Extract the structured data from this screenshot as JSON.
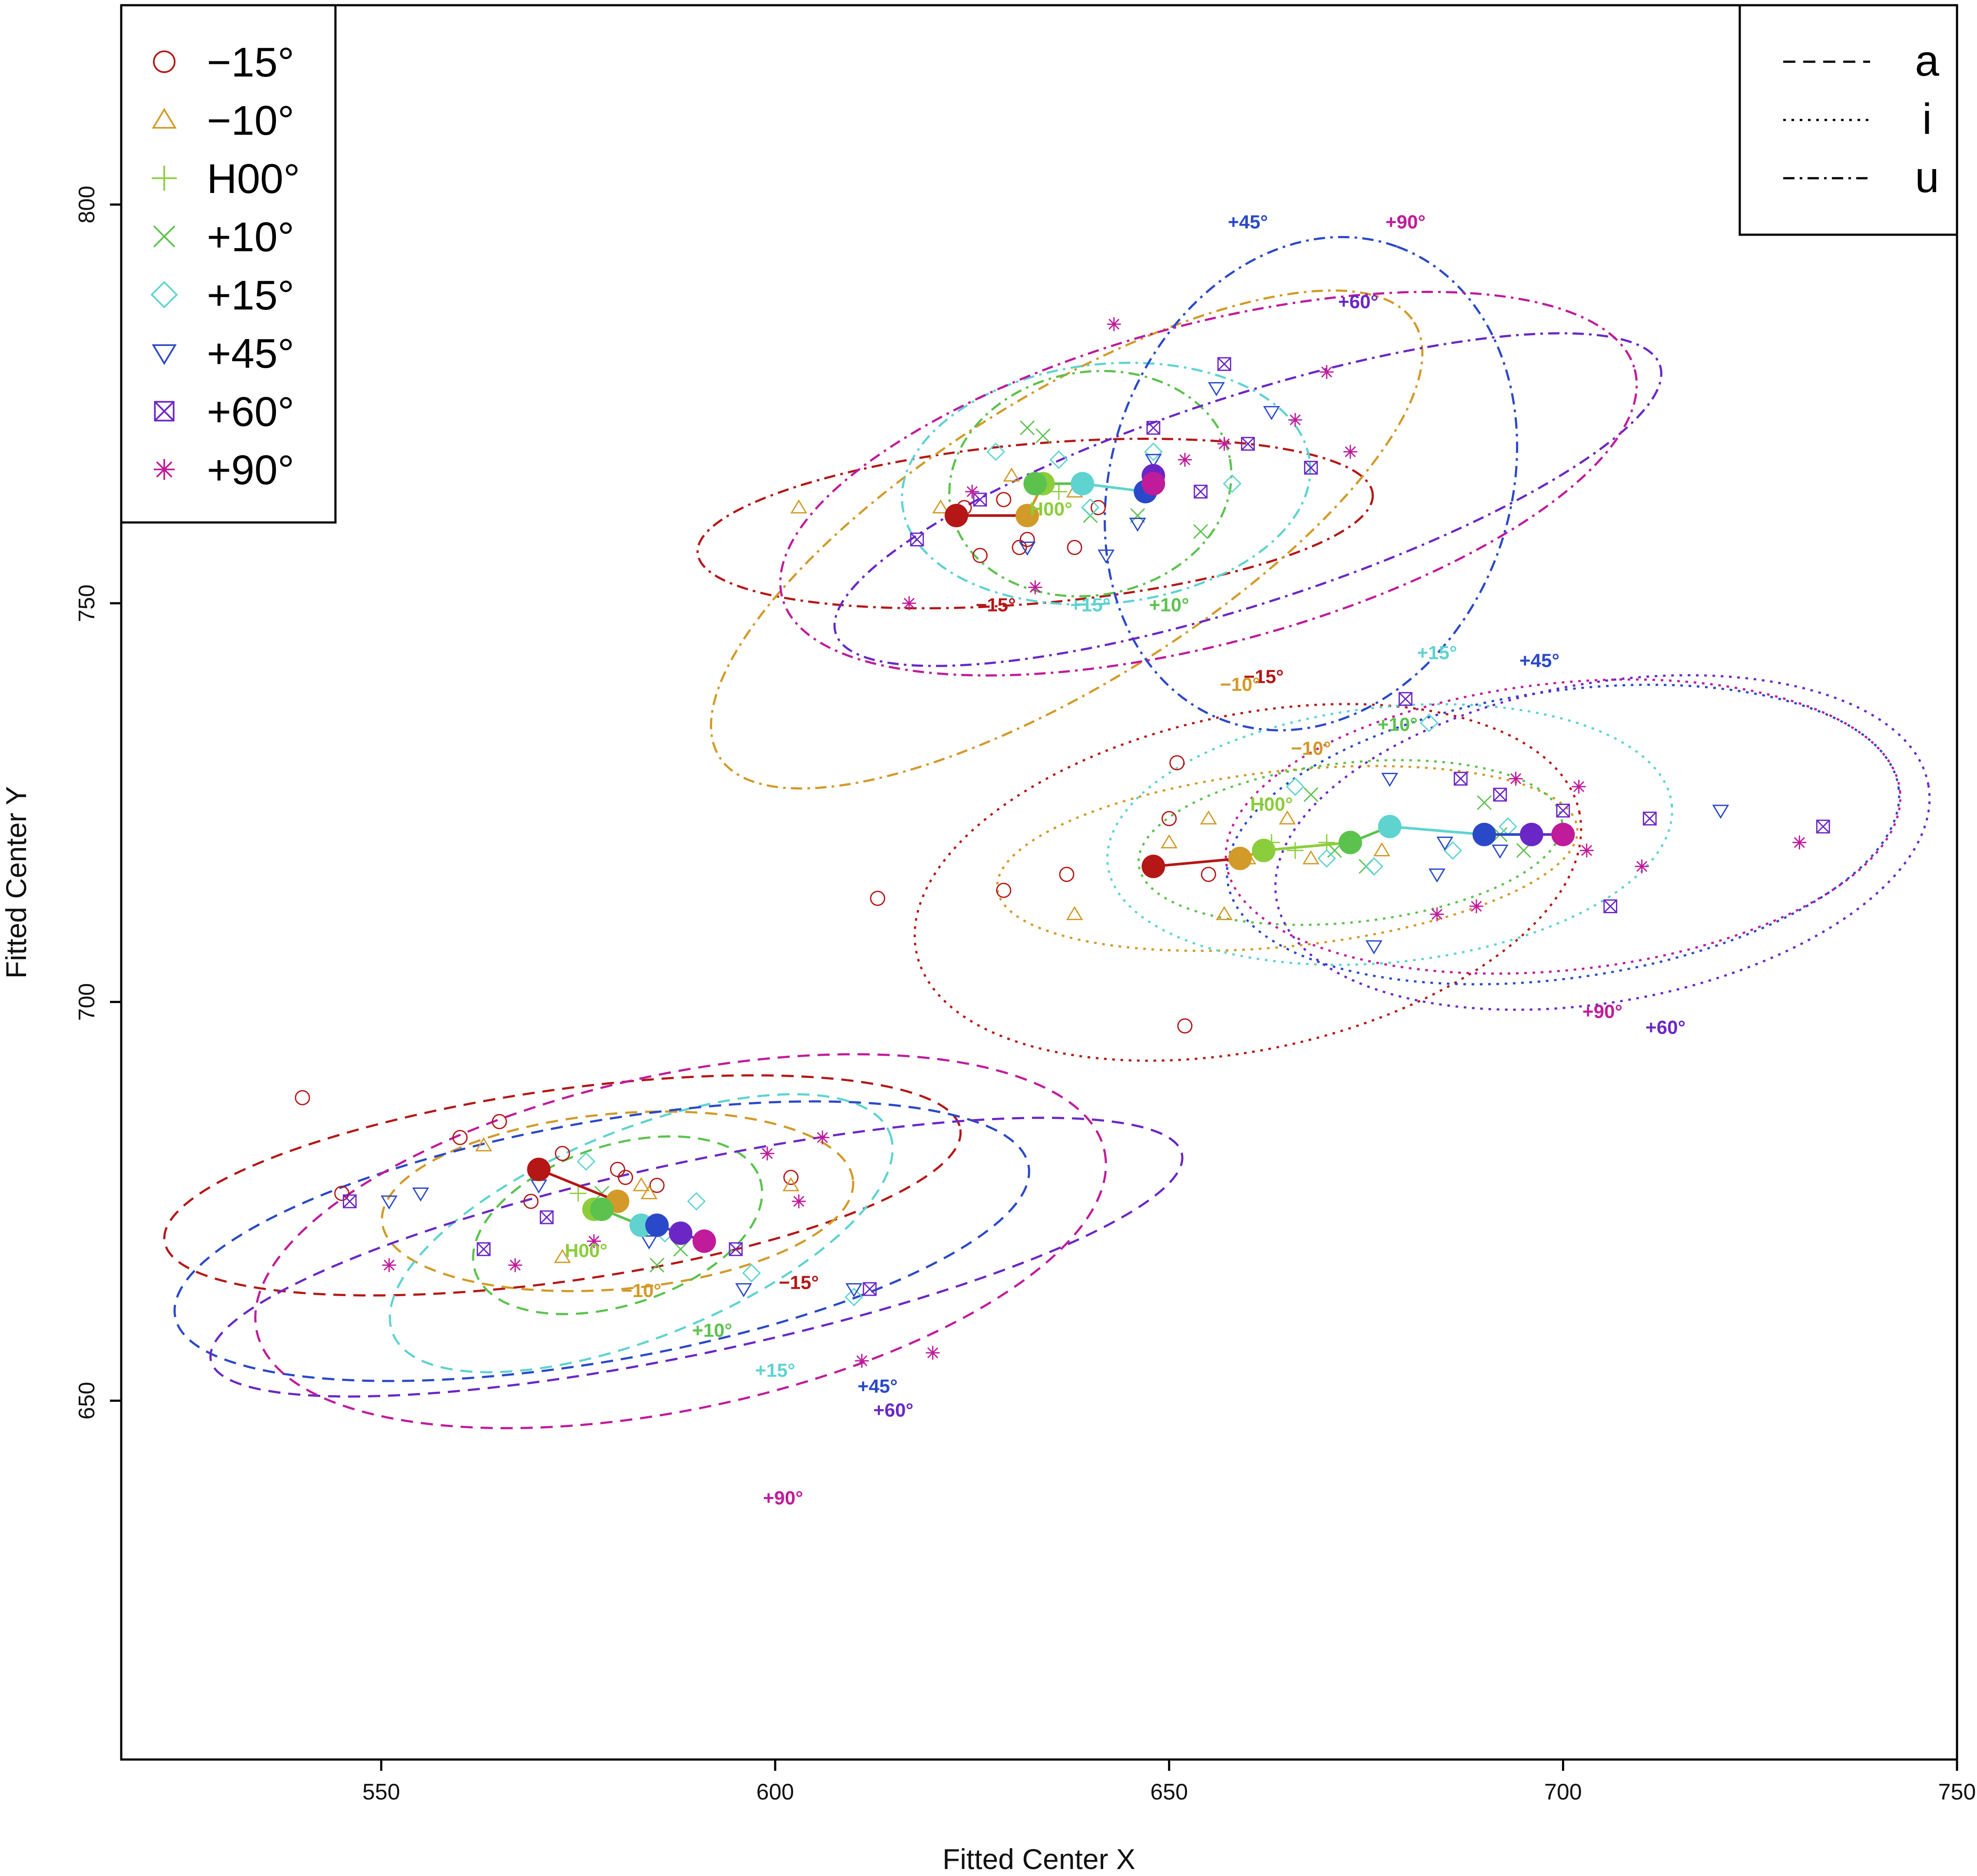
{
  "chart_data": {
    "type": "scatter",
    "title": "",
    "xlabel": "Fitted Center X",
    "ylabel": "Fitted Center Y",
    "xlim": [
      517,
      750
    ],
    "ylim": [
      605,
      825
    ],
    "xticks": [
      "550",
      "600",
      "650",
      "700",
      "750"
    ],
    "yticks": [
      "650",
      "700",
      "750",
      "800"
    ],
    "angle_legend": [
      {
        "label": "−15°",
        "marker": "circle",
        "color": "#b51616"
      },
      {
        "label": "−10°",
        "marker": "triangle",
        "color": "#d29a28"
      },
      {
        "label": "H00°",
        "marker": "plus",
        "color": "#8ccd3c"
      },
      {
        "label": "+10°",
        "marker": "cross",
        "color": "#5cc24e"
      },
      {
        "label": "+15°",
        "marker": "diamond",
        "color": "#5fd3d0"
      },
      {
        "label": "+45°",
        "marker": "triangle-down",
        "color": "#2a49c8"
      },
      {
        "label": "+60°",
        "marker": "boxed-x",
        "color": "#6a27c6"
      },
      {
        "label": "+90°",
        "marker": "asterisk",
        "color": "#c01b9b"
      }
    ],
    "vowel_legend": [
      {
        "label": "a",
        "dash": "dashed"
      },
      {
        "label": "i",
        "dash": "dotted"
      },
      {
        "label": "u",
        "dash": "dotdash"
      }
    ],
    "series": [
      {
        "name": "a",
        "dash": "dashed",
        "centers": [
          {
            "angle": "−15°",
            "x": 570,
            "y": 679
          },
          {
            "angle": "−10°",
            "x": 580,
            "y": 675
          },
          {
            "angle": "H00°",
            "x": 577,
            "y": 674
          },
          {
            "angle": "+10°",
            "x": 578,
            "y": 674
          },
          {
            "angle": "+15°",
            "x": 583,
            "y": 672
          },
          {
            "angle": "+45°",
            "x": 585,
            "y": 672
          },
          {
            "angle": "+60°",
            "x": 588,
            "y": 671
          },
          {
            "angle": "+90°",
            "x": 591,
            "y": 670
          }
        ],
        "ellipses": [
          {
            "angle": "−15°",
            "cx": 573,
            "cy": 677,
            "rx": 51,
            "ry": 12,
            "rot": -8
          },
          {
            "angle": "−10°",
            "cx": 580,
            "cy": 675,
            "rx": 30,
            "ry": 11,
            "rot": -5
          },
          {
            "angle": "+10°",
            "cx": 580,
            "cy": 672,
            "rx": 19,
            "ry": 10,
            "rot": -18
          },
          {
            "angle": "+15°",
            "cx": 583,
            "cy": 671,
            "rx": 34,
            "ry": 13,
            "rot": -22
          },
          {
            "angle": "+45°",
            "cx": 578,
            "cy": 670,
            "rx": 55,
            "ry": 15,
            "rot": -10
          },
          {
            "angle": "+60°",
            "cx": 590,
            "cy": 668,
            "rx": 63,
            "ry": 12,
            "rot": -12
          },
          {
            "angle": "+90°",
            "cx": 588,
            "cy": 670,
            "rx": 55,
            "ry": 21,
            "rot": -12
          }
        ],
        "labels": [
          "−15°",
          "−10°",
          "H00°",
          "+10°",
          "+15°",
          "+45°",
          "+60°",
          "+90°"
        ]
      },
      {
        "name": "i",
        "dash": "dotted",
        "centers": [
          {
            "angle": "−15°",
            "x": 648,
            "y": 717
          },
          {
            "angle": "−10°",
            "x": 659,
            "y": 718
          },
          {
            "angle": "H00°",
            "x": 662,
            "y": 719
          },
          {
            "angle": "+10°",
            "x": 673,
            "y": 720
          },
          {
            "angle": "+15°",
            "x": 678,
            "y": 722
          },
          {
            "angle": "+45°",
            "x": 690,
            "y": 721
          },
          {
            "angle": "+60°",
            "x": 696,
            "y": 721
          },
          {
            "angle": "+90°",
            "x": 700,
            "y": 721
          }
        ],
        "ellipses": [
          {
            "angle": "−15°",
            "cx": 660,
            "cy": 715,
            "rx": 43,
            "ry": 21,
            "rot": -12
          },
          {
            "angle": "−10°",
            "cx": 665,
            "cy": 718,
            "rx": 37,
            "ry": 11,
            "rot": -6
          },
          {
            "angle": "+10°",
            "cx": 673,
            "cy": 720,
            "rx": 27,
            "ry": 10,
            "rot": -6
          },
          {
            "angle": "+15°",
            "cx": 678,
            "cy": 721,
            "rx": 36,
            "ry": 16,
            "rot": -6
          },
          {
            "angle": "+45°",
            "cx": 700,
            "cy": 721,
            "rx": 43,
            "ry": 18,
            "rot": -8
          },
          {
            "angle": "+60°",
            "cx": 705,
            "cy": 720,
            "rx": 42,
            "ry": 20,
            "rot": -10
          },
          {
            "angle": "+90°",
            "cx": 700,
            "cy": 722,
            "rx": 43,
            "ry": 18,
            "rot": -6
          }
        ],
        "labels": [
          "−15°",
          "−10°",
          "H00°",
          "+10°",
          "+15°",
          "+45°",
          "+60°",
          "+90°"
        ]
      },
      {
        "name": "u",
        "dash": "dotdash",
        "centers": [
          {
            "angle": "−15°",
            "x": 623,
            "y": 761
          },
          {
            "angle": "−10°",
            "x": 632,
            "y": 761
          },
          {
            "angle": "H00°",
            "x": 634,
            "y": 765
          },
          {
            "angle": "+10°",
            "x": 633,
            "y": 765
          },
          {
            "angle": "+15°",
            "x": 639,
            "y": 765
          },
          {
            "angle": "+45°",
            "x": 647,
            "y": 764
          },
          {
            "angle": "+60°",
            "x": 648,
            "y": 766
          },
          {
            "angle": "+90°",
            "x": 648,
            "y": 765
          }
        ],
        "ellipses": [
          {
            "angle": "−15°",
            "cx": 633,
            "cy": 760,
            "rx": 43,
            "ry": 10,
            "rot": -5
          },
          {
            "angle": "−10°",
            "cx": 637,
            "cy": 758,
            "rx": 52,
            "ry": 18,
            "rot": -32
          },
          {
            "angle": "+10°",
            "cx": 640,
            "cy": 765,
            "rx": 18,
            "ry": 14,
            "rot": -10
          },
          {
            "angle": "+15°",
            "cx": 642,
            "cy": 765,
            "rx": 26,
            "ry": 15,
            "rot": -6
          },
          {
            "angle": "+45°",
            "cx": 668,
            "cy": 765,
            "rx": 32,
            "ry": 25,
            "rot": -70
          },
          {
            "angle": "+60°",
            "cx": 660,
            "cy": 763,
            "rx": 55,
            "ry": 13,
            "rot": -18
          },
          {
            "angle": "+90°",
            "cx": 655,
            "cy": 765,
            "rx": 56,
            "ry": 20,
            "rot": -15
          }
        ],
        "labels": [
          "−15°",
          "−10°",
          "H00°",
          "+10°",
          "+15°",
          "+45°",
          "+60°",
          "+90°"
        ]
      }
    ],
    "raw_points": [
      {
        "angle": "−15°",
        "points": [
          [
            540,
            688
          ],
          [
            545,
            676
          ],
          [
            560,
            683
          ],
          [
            565,
            685
          ],
          [
            569,
            675
          ],
          [
            573,
            681
          ],
          [
            580,
            679
          ],
          [
            581,
            678
          ],
          [
            585,
            677
          ],
          [
            602,
            678
          ],
          [
            613,
            713
          ],
          [
            624,
            762
          ],
          [
            626,
            756
          ],
          [
            629,
            763
          ],
          [
            631,
            757
          ],
          [
            632,
            758
          ],
          [
            638,
            757
          ],
          [
            641,
            762
          ],
          [
            650,
            723
          ],
          [
            651,
            730
          ],
          [
            655,
            716
          ],
          [
            652,
            697
          ],
          [
            637,
            716
          ],
          [
            629,
            714
          ]
        ]
      },
      {
        "angle": "−10°",
        "points": [
          [
            563,
            682
          ],
          [
            573,
            668
          ],
          [
            583,
            677
          ],
          [
            584,
            676
          ],
          [
            602,
            677
          ],
          [
            603,
            762
          ],
          [
            621,
            762
          ],
          [
            630,
            766
          ],
          [
            638,
            764
          ],
          [
            650,
            720
          ],
          [
            655,
            723
          ],
          [
            657,
            711
          ],
          [
            660,
            718
          ],
          [
            665,
            723
          ],
          [
            668,
            718
          ],
          [
            677,
            719
          ],
          [
            638,
            711
          ]
        ]
      },
      {
        "angle": "H00°",
        "points": [
          [
            575,
            676
          ],
          [
            579,
            675
          ],
          [
            634,
            765
          ],
          [
            636,
            764
          ],
          [
            663,
            720
          ],
          [
            666,
            719
          ],
          [
            670,
            720
          ]
        ]
      },
      {
        "angle": "+10°",
        "points": [
          [
            578,
            676
          ],
          [
            585,
            667
          ],
          [
            588,
            669
          ],
          [
            632,
            772
          ],
          [
            634,
            771
          ],
          [
            640,
            761
          ],
          [
            646,
            761
          ],
          [
            654,
            759
          ],
          [
            668,
            726
          ],
          [
            671,
            719
          ],
          [
            675,
            717
          ],
          [
            690,
            725
          ],
          [
            692,
            721
          ],
          [
            695,
            719
          ]
        ]
      },
      {
        "angle": "+15°",
        "points": [
          [
            576,
            680
          ],
          [
            586,
            671
          ],
          [
            590,
            675
          ],
          [
            597,
            666
          ],
          [
            610,
            663
          ],
          [
            628,
            769
          ],
          [
            636,
            768
          ],
          [
            640,
            762
          ],
          [
            648,
            769
          ],
          [
            658,
            765
          ],
          [
            666,
            727
          ],
          [
            670,
            718
          ],
          [
            676,
            717
          ],
          [
            683,
            735
          ],
          [
            686,
            719
          ],
          [
            693,
            722
          ]
        ]
      },
      {
        "angle": "+45°",
        "points": [
          [
            551,
            675
          ],
          [
            555,
            676
          ],
          [
            570,
            677
          ],
          [
            584,
            670
          ],
          [
            596,
            664
          ],
          [
            610,
            664
          ],
          [
            632,
            757
          ],
          [
            642,
            756
          ],
          [
            646,
            760
          ],
          [
            648,
            768
          ],
          [
            656,
            777
          ],
          [
            663,
            774
          ],
          [
            676,
            707
          ],
          [
            678,
            728
          ],
          [
            684,
            716
          ],
          [
            692,
            719
          ],
          [
            720,
            724
          ],
          [
            685,
            720
          ]
        ]
      },
      {
        "angle": "+60°",
        "points": [
          [
            546,
            675
          ],
          [
            563,
            669
          ],
          [
            571,
            673
          ],
          [
            595,
            669
          ],
          [
            612,
            664
          ],
          [
            618,
            758
          ],
          [
            626,
            763
          ],
          [
            648,
            772
          ],
          [
            654,
            764
          ],
          [
            657,
            780
          ],
          [
            660,
            770
          ],
          [
            668,
            767
          ],
          [
            680,
            738
          ],
          [
            687,
            728
          ],
          [
            692,
            726
          ],
          [
            700,
            724
          ],
          [
            706,
            712
          ],
          [
            711,
            723
          ],
          [
            733,
            722
          ]
        ]
      },
      {
        "angle": "+90°",
        "points": [
          [
            551,
            667
          ],
          [
            567,
            667
          ],
          [
            577,
            670
          ],
          [
            599,
            681
          ],
          [
            603,
            675
          ],
          [
            606,
            683
          ],
          [
            611,
            655
          ],
          [
            620,
            656
          ],
          [
            617,
            750
          ],
          [
            625,
            764
          ],
          [
            633,
            752
          ],
          [
            643,
            785
          ],
          [
            652,
            768
          ],
          [
            657,
            770
          ],
          [
            666,
            773
          ],
          [
            670,
            779
          ],
          [
            673,
            769
          ],
          [
            684,
            711
          ],
          [
            689,
            712
          ],
          [
            694,
            728
          ],
          [
            702,
            727
          ],
          [
            703,
            719
          ],
          [
            710,
            717
          ],
          [
            730,
            720
          ]
        ]
      }
    ]
  }
}
